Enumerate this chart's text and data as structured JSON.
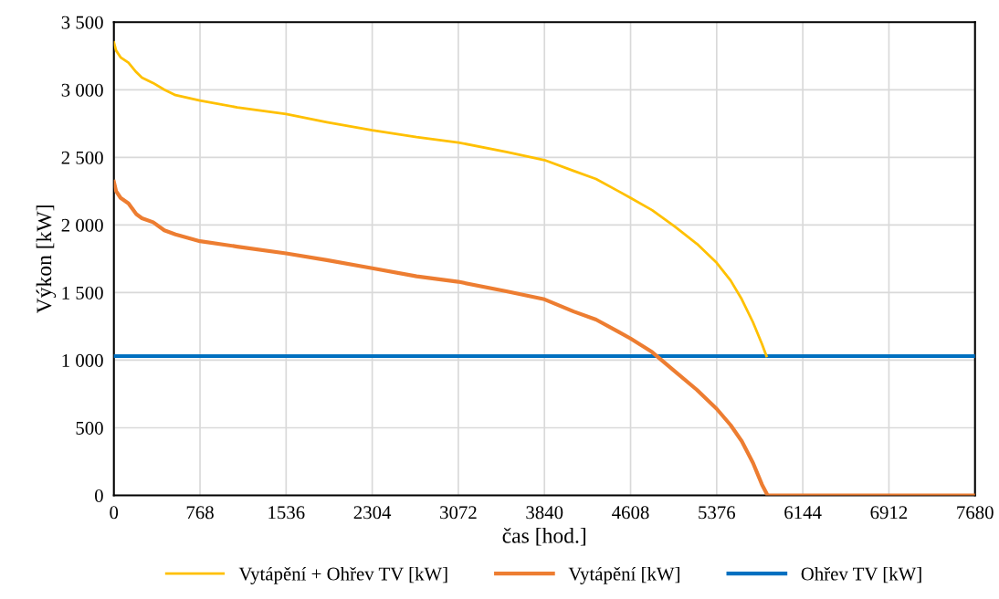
{
  "chart_data": {
    "type": "line",
    "xlabel": "čas [hod.]",
    "ylabel": "Výkon [kW]",
    "xlim": [
      0,
      7680
    ],
    "ylim": [
      0,
      3500
    ],
    "xticks": [
      0,
      768,
      1536,
      2304,
      3072,
      3840,
      4608,
      5376,
      6144,
      6912,
      7680
    ],
    "yticks": [
      {
        "value": 0,
        "label": "0"
      },
      {
        "value": 500,
        "label": "500"
      },
      {
        "value": 1000,
        "label": "1 000"
      },
      {
        "value": 1500,
        "label": "1 500"
      },
      {
        "value": 2000,
        "label": "2 000"
      },
      {
        "value": 2500,
        "label": "2 500"
      },
      {
        "value": 3000,
        "label": "3 000"
      },
      {
        "value": 3500,
        "label": "3 500"
      }
    ],
    "grid": true,
    "legend": "bottom",
    "marker": "none",
    "line_style": "solid",
    "series": [
      {
        "name": "Vytápění + Ohřev TV [kW]",
        "color": "#ffc000",
        "x": [
          0,
          20,
          60,
          130,
          200,
          250,
          350,
          450,
          550,
          768,
          1100,
          1536,
          1900,
          2304,
          2700,
          3072,
          3500,
          3840,
          4100,
          4300,
          4500,
          4608,
          4800,
          5000,
          5200,
          5376,
          5500,
          5600,
          5700,
          5780,
          5820
        ],
        "values": [
          3350,
          3290,
          3240,
          3200,
          3130,
          3090,
          3050,
          3000,
          2960,
          2920,
          2870,
          2820,
          2760,
          2700,
          2650,
          2610,
          2540,
          2480,
          2400,
          2340,
          2250,
          2200,
          2110,
          1990,
          1860,
          1720,
          1590,
          1450,
          1280,
          1120,
          1030
        ]
      },
      {
        "name": "Vytápění [kW]",
        "color": "#ed7d31",
        "x": [
          0,
          20,
          60,
          130,
          200,
          250,
          350,
          450,
          550,
          768,
          1100,
          1536,
          1900,
          2304,
          2700,
          3072,
          3500,
          3840,
          4100,
          4300,
          4500,
          4608,
          4800,
          5000,
          5200,
          5376,
          5500,
          5600,
          5700,
          5780,
          5830,
          7680
        ],
        "values": [
          2320,
          2250,
          2200,
          2160,
          2080,
          2050,
          2020,
          1960,
          1930,
          1880,
          1840,
          1790,
          1740,
          1680,
          1620,
          1580,
          1510,
          1450,
          1360,
          1300,
          1210,
          1160,
          1060,
          920,
          780,
          640,
          520,
          400,
          240,
          80,
          0,
          0
        ]
      },
      {
        "name": "Ohřev TV [kW]",
        "color": "#0070c0",
        "x": [
          0,
          7680
        ],
        "values": [
          1030,
          1030
        ]
      }
    ]
  }
}
